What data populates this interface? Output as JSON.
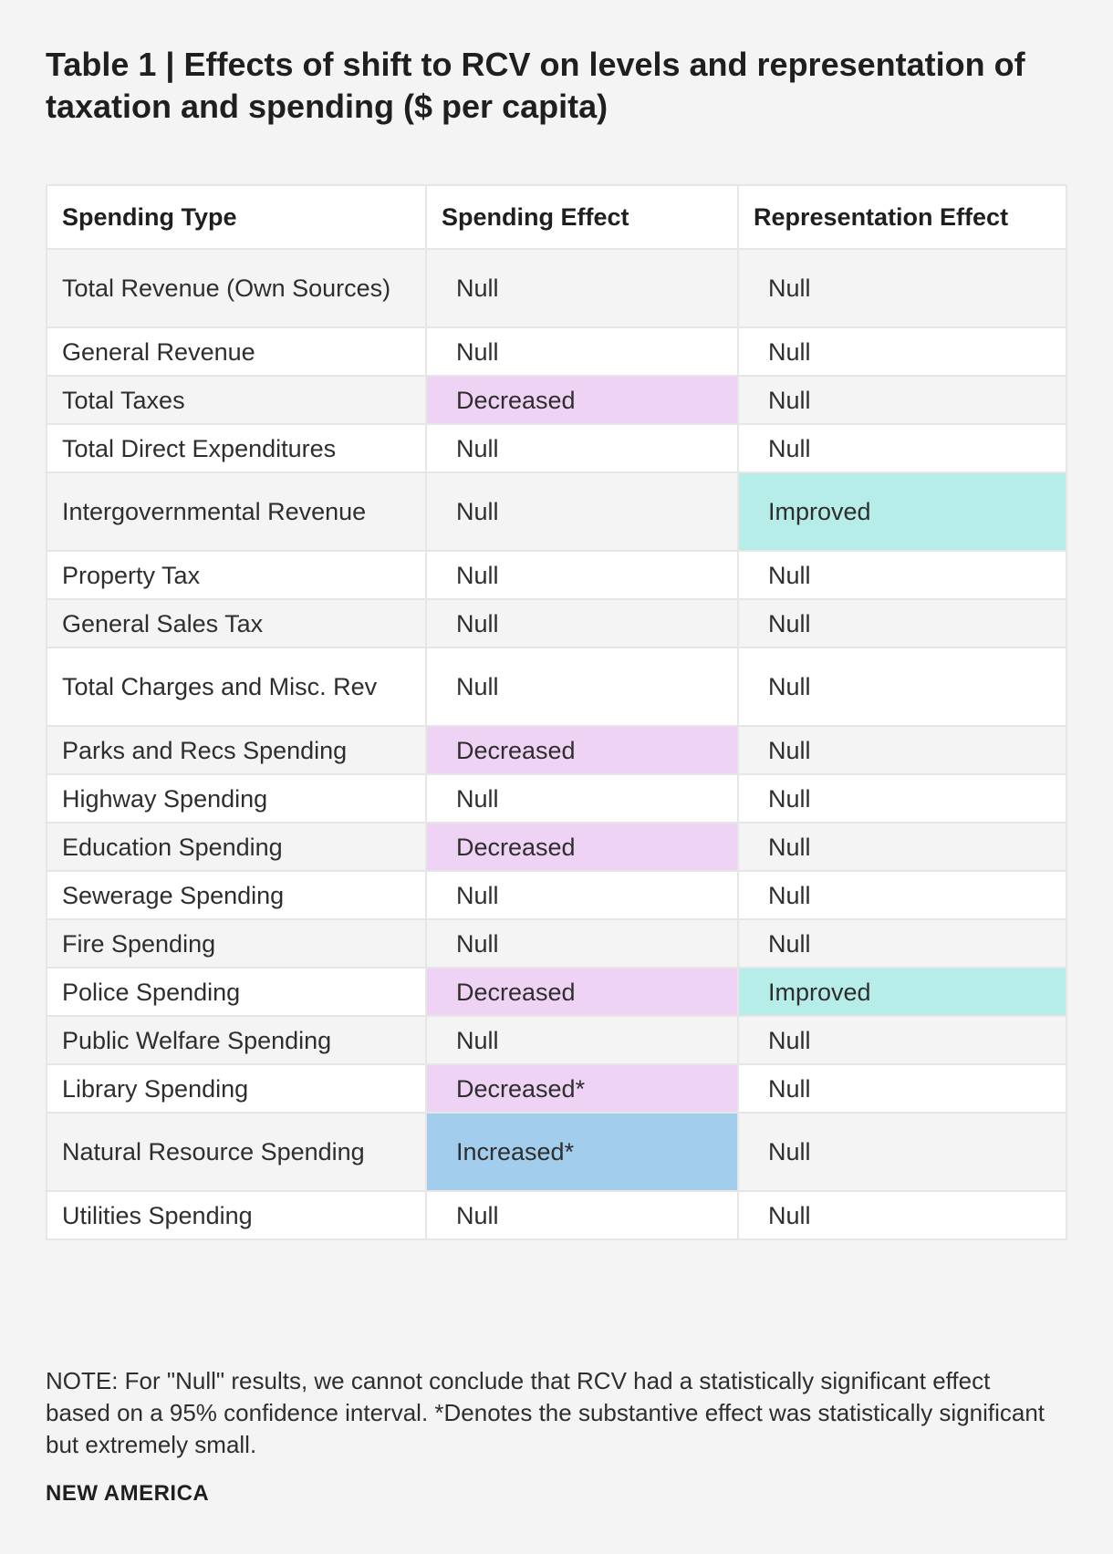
{
  "title": "Table 1 | Effects of shift to RCV on levels and representation of taxation and spending ($ per capita)",
  "colors": {
    "decreased": "#efd3f4",
    "increased": "#a3cdec",
    "improved": "#b7ede9"
  },
  "table": {
    "headers": [
      "Spending Type",
      "Spending Effect",
      "Representation Effect"
    ],
    "rows": [
      {
        "type": "Total Revenue (Own Sources)",
        "spending": "Null",
        "representation": "Null",
        "spending_class": "",
        "rep_class": "",
        "height": "tall"
      },
      {
        "type": "General Revenue",
        "spending": "Null",
        "representation": "Null",
        "spending_class": "",
        "rep_class": ""
      },
      {
        "type": "Total Taxes",
        "spending": "Decreased",
        "representation": "Null",
        "spending_class": "dec",
        "rep_class": ""
      },
      {
        "type": "Total Direct Expenditures",
        "spending": "Null",
        "representation": "Null",
        "spending_class": "",
        "rep_class": ""
      },
      {
        "type": "Intergovernmental Revenue",
        "spending": "Null",
        "representation": "Improved",
        "spending_class": "",
        "rep_class": "imp",
        "height": "tall"
      },
      {
        "type": "Property Tax",
        "spending": "Null",
        "representation": "Null",
        "spending_class": "",
        "rep_class": ""
      },
      {
        "type": "General Sales Tax",
        "spending": "Null",
        "representation": "Null",
        "spending_class": "",
        "rep_class": ""
      },
      {
        "type": "Total Charges and Misc. Rev",
        "spending": "Null",
        "representation": "Null",
        "spending_class": "",
        "rep_class": "",
        "height": "tall"
      },
      {
        "type": "Parks and Recs Spending",
        "spending": "Decreased",
        "representation": "Null",
        "spending_class": "dec",
        "rep_class": ""
      },
      {
        "type": "Highway Spending",
        "spending": "Null",
        "representation": "Null",
        "spending_class": "",
        "rep_class": ""
      },
      {
        "type": "Education Spending",
        "spending": "Decreased",
        "representation": "Null",
        "spending_class": "dec",
        "rep_class": ""
      },
      {
        "type": "Sewerage Spending",
        "spending": "Null",
        "representation": "Null",
        "spending_class": "",
        "rep_class": ""
      },
      {
        "type": "Fire Spending",
        "spending": "Null",
        "representation": "Null",
        "spending_class": "",
        "rep_class": ""
      },
      {
        "type": "Police Spending",
        "spending": "Decreased",
        "representation": "Improved",
        "spending_class": "dec",
        "rep_class": "imp"
      },
      {
        "type": "Public Welfare Spending",
        "spending": "Null",
        "representation": "Null",
        "spending_class": "",
        "rep_class": ""
      },
      {
        "type": "Library Spending",
        "spending": "Decreased*",
        "representation": "Null",
        "spending_class": "dec",
        "rep_class": ""
      },
      {
        "type": "Natural Resource Spending",
        "spending": "Increased*",
        "representation": "Null",
        "spending_class": "inc",
        "rep_class": "",
        "height": "tall"
      },
      {
        "type": "Utilities Spending",
        "spending": "Null",
        "representation": "Null",
        "spending_class": "",
        "rep_class": ""
      }
    ]
  },
  "note": "NOTE: For \"Null\" results, we cannot conclude that RCV had a statistically significant effect based on a 95% confidence interval. *Denotes the substantive effect was statistically significant but extremely small.",
  "brand": "NEW AMERICA"
}
